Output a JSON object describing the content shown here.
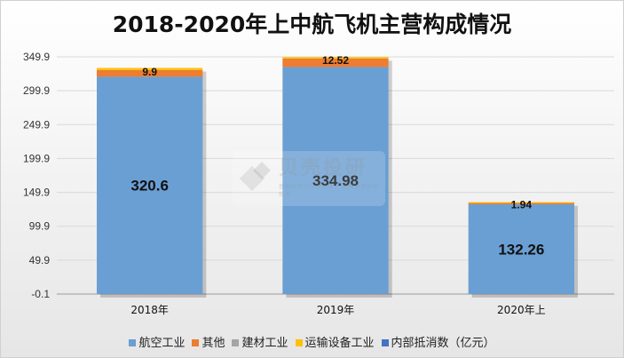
{
  "chart_data": {
    "type": "bar",
    "stacked": true,
    "title": "2018-2020年上中航飞机主营构成情况",
    "categories": [
      "2018年",
      "2019年",
      "2020年上"
    ],
    "series": [
      {
        "name": "航空工业",
        "color": "#6a9fd3",
        "values": [
          320.6,
          334.98,
          132.26
        ]
      },
      {
        "name": "其他",
        "color": "#ed7d31",
        "values": [
          9.9,
          12.52,
          1.94
        ]
      },
      {
        "name": "建材工业",
        "color": "#a5a5a5",
        "values": [
          0,
          0,
          0
        ]
      },
      {
        "name": "运输设备工业",
        "color": "#ffc000",
        "values": [
          3.0,
          2.0,
          1.2
        ]
      },
      {
        "name": "内部抵消数（亿元）",
        "color": "#4472c4",
        "values": [
          0,
          0,
          0
        ]
      }
    ],
    "data_labels": [
      {
        "category": "2018年",
        "series": "航空工业",
        "text": "320.6"
      },
      {
        "category": "2019年",
        "series": "航空工业",
        "text": "334.98"
      },
      {
        "category": "2020年上",
        "series": "航空工业",
        "text": "132.26"
      },
      {
        "category": "2018年",
        "series": "其他",
        "text": "9.9"
      },
      {
        "category": "2019年",
        "series": "其他",
        "text": "12.52"
      },
      {
        "category": "2020年上",
        "series": "其他",
        "text": "1.94"
      }
    ],
    "y_ticks": [
      "-0.1",
      "49.9",
      "99.9",
      "149.9",
      "199.9",
      "249.9",
      "299.9",
      "349.9"
    ],
    "y_tick_values": [
      -0.1,
      49.9,
      99.9,
      149.9,
      199.9,
      249.9,
      299.9,
      349.9
    ],
    "ylim": [
      -0.1,
      349.9
    ],
    "grid": true,
    "legend_position": "bottom"
  },
  "watermark": {
    "brand": "贝壳投研",
    "subtitle": "基础研究的合作伙伴 · 投资决策的好帮手"
  }
}
